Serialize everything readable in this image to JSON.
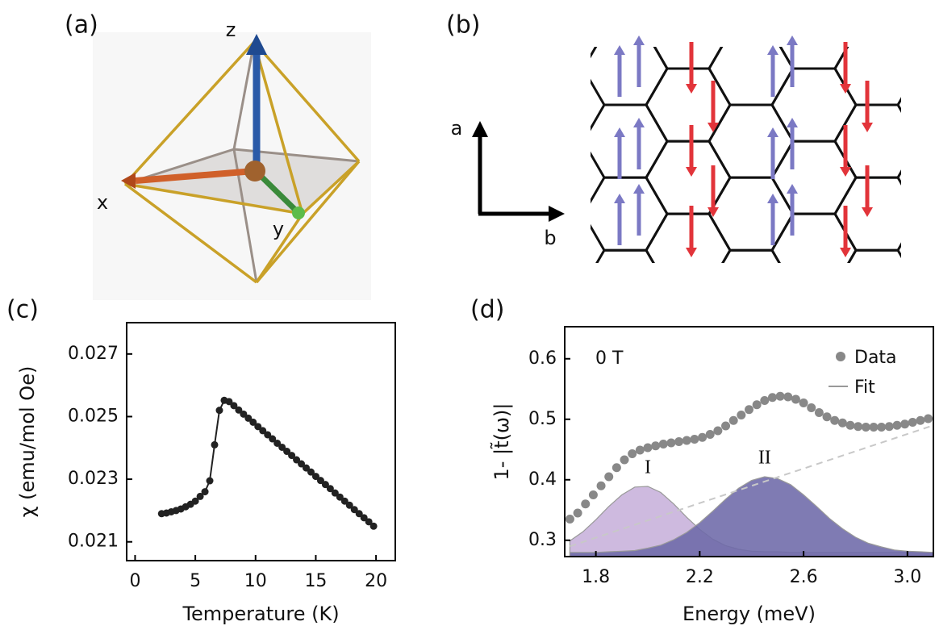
{
  "panels": [
    {
      "label": "(a)",
      "axis_labels": [
        "z",
        "x",
        "y"
      ]
    },
    {
      "label": "(b)",
      "axis_labels": [
        "a",
        "b"
      ]
    },
    {
      "label": "(c)"
    },
    {
      "label": "(d)"
    }
  ],
  "chart_data": [
    {
      "type": "line",
      "xlabel": "Temperature (K)",
      "ylabel": "χ (emu/mol Oe)",
      "color": "#222222",
      "x": [
        2.2,
        2.6,
        3.0,
        3.4,
        3.8,
        4.2,
        4.6,
        5.0,
        5.4,
        5.8,
        6.2,
        6.6,
        7.0,
        7.4,
        7.8,
        8.2,
        8.6,
        9.0,
        9.4,
        9.8,
        10.2,
        10.6,
        11.0,
        11.4,
        11.8,
        12.2,
        12.6,
        13.0,
        13.4,
        13.8,
        14.2,
        14.6,
        15.0,
        15.4,
        15.8,
        16.2,
        16.6,
        17.0,
        17.4,
        17.8,
        18.2,
        18.6,
        19.0,
        19.4,
        19.8
      ],
      "values": [
        0.0219,
        0.02192,
        0.02196,
        0.022,
        0.02205,
        0.02212,
        0.0222,
        0.0223,
        0.02245,
        0.0226,
        0.02295,
        0.0241,
        0.0252,
        0.02552,
        0.02548,
        0.02535,
        0.02521,
        0.02508,
        0.02495,
        0.02482,
        0.02468,
        0.02455,
        0.02442,
        0.02429,
        0.02415,
        0.02402,
        0.02389,
        0.02376,
        0.02362,
        0.02349,
        0.02336,
        0.02323,
        0.02309,
        0.02296,
        0.02283,
        0.0227,
        0.02256,
        0.02243,
        0.0223,
        0.02217,
        0.02203,
        0.0219,
        0.02177,
        0.02164,
        0.0215
      ],
      "xlim": [
        -0.7,
        21.6
      ],
      "xticks": [
        0,
        5,
        10,
        15,
        20
      ],
      "ylim": [
        0.0204,
        0.028
      ],
      "yticks": [
        0.021,
        0.023,
        0.025,
        0.027
      ]
    },
    {
      "type": "scatter",
      "xlabel": "Energy (meV)",
      "ylabel": "1- |t̃(ω)|",
      "annotation": "0 T",
      "x": [
        1.7,
        1.73,
        1.76,
        1.79,
        1.82,
        1.85,
        1.88,
        1.91,
        1.94,
        1.97,
        2.0,
        2.03,
        2.06,
        2.09,
        2.12,
        2.15,
        2.18,
        2.21,
        2.24,
        2.27,
        2.3,
        2.33,
        2.36,
        2.39,
        2.42,
        2.45,
        2.48,
        2.51,
        2.54,
        2.57,
        2.6,
        2.63,
        2.66,
        2.69,
        2.72,
        2.75,
        2.78,
        2.81,
        2.84,
        2.87,
        2.9,
        2.93,
        2.96,
        2.99,
        3.02,
        3.05,
        3.08
      ],
      "series": [
        {
          "name": "Data",
          "color": "#888888",
          "values": [
            0.335,
            0.345,
            0.36,
            0.375,
            0.39,
            0.405,
            0.42,
            0.433,
            0.443,
            0.449,
            0.453,
            0.456,
            0.459,
            0.461,
            0.463,
            0.465,
            0.467,
            0.47,
            0.475,
            0.481,
            0.489,
            0.498,
            0.507,
            0.516,
            0.524,
            0.531,
            0.536,
            0.538,
            0.537,
            0.533,
            0.527,
            0.519,
            0.511,
            0.504,
            0.498,
            0.494,
            0.49,
            0.488,
            0.487,
            0.487,
            0.487,
            0.488,
            0.49,
            0.492,
            0.495,
            0.498,
            0.501
          ]
        }
      ],
      "fit": {
        "name": "Fit",
        "color": "#999999"
      },
      "fit_components": [
        {
          "label": "I",
          "color": "#c7b1db",
          "x": [
            1.7,
            1.75,
            1.8,
            1.85,
            1.9,
            1.95,
            2.0,
            2.05,
            2.1,
            2.15,
            2.2,
            2.25,
            2.3,
            2.35,
            2.4,
            2.45,
            2.5,
            2.55,
            2.6,
            2.65,
            2.7,
            2.75,
            2.8,
            2.85,
            2.9,
            2.95,
            3.0,
            3.05,
            3.1
          ],
          "values": [
            0.299,
            0.314,
            0.334,
            0.356,
            0.375,
            0.388,
            0.389,
            0.379,
            0.36,
            0.338,
            0.318,
            0.302,
            0.291,
            0.285,
            0.282,
            0.281,
            0.281,
            0.28,
            0.28,
            0.28,
            0.28,
            0.28,
            0.28,
            0.28,
            0.28,
            0.28,
            0.28,
            0.28,
            0.28
          ]
        },
        {
          "label": "II",
          "color": "#6d69a8",
          "x": [
            1.7,
            1.75,
            1.8,
            1.85,
            1.9,
            1.95,
            2.0,
            2.05,
            2.1,
            2.15,
            2.2,
            2.25,
            2.3,
            2.35,
            2.4,
            2.45,
            2.5,
            2.55,
            2.6,
            2.65,
            2.7,
            2.75,
            2.8,
            2.85,
            2.9,
            2.95,
            3.0,
            3.05,
            3.1
          ],
          "values": [
            0.28,
            0.28,
            0.28,
            0.281,
            0.282,
            0.283,
            0.287,
            0.292,
            0.301,
            0.313,
            0.329,
            0.348,
            0.368,
            0.386,
            0.399,
            0.405,
            0.402,
            0.392,
            0.375,
            0.356,
            0.336,
            0.319,
            0.305,
            0.295,
            0.289,
            0.284,
            0.282,
            0.281,
            0.28
          ]
        }
      ],
      "baseline": {
        "color": "#c8c8c8",
        "x": [
          1.7,
          3.1
        ],
        "values": [
          0.29,
          0.49
        ]
      },
      "xlim": [
        1.68,
        3.1
      ],
      "xticks": [
        1.8,
        2.2,
        2.6,
        {
          "value": 3,
          "label": "3.0"
        }
      ],
      "ylim": [
        0.273,
        0.653
      ],
      "yticks": [
        0.3,
        0.4,
        0.5,
        0.6
      ]
    }
  ]
}
